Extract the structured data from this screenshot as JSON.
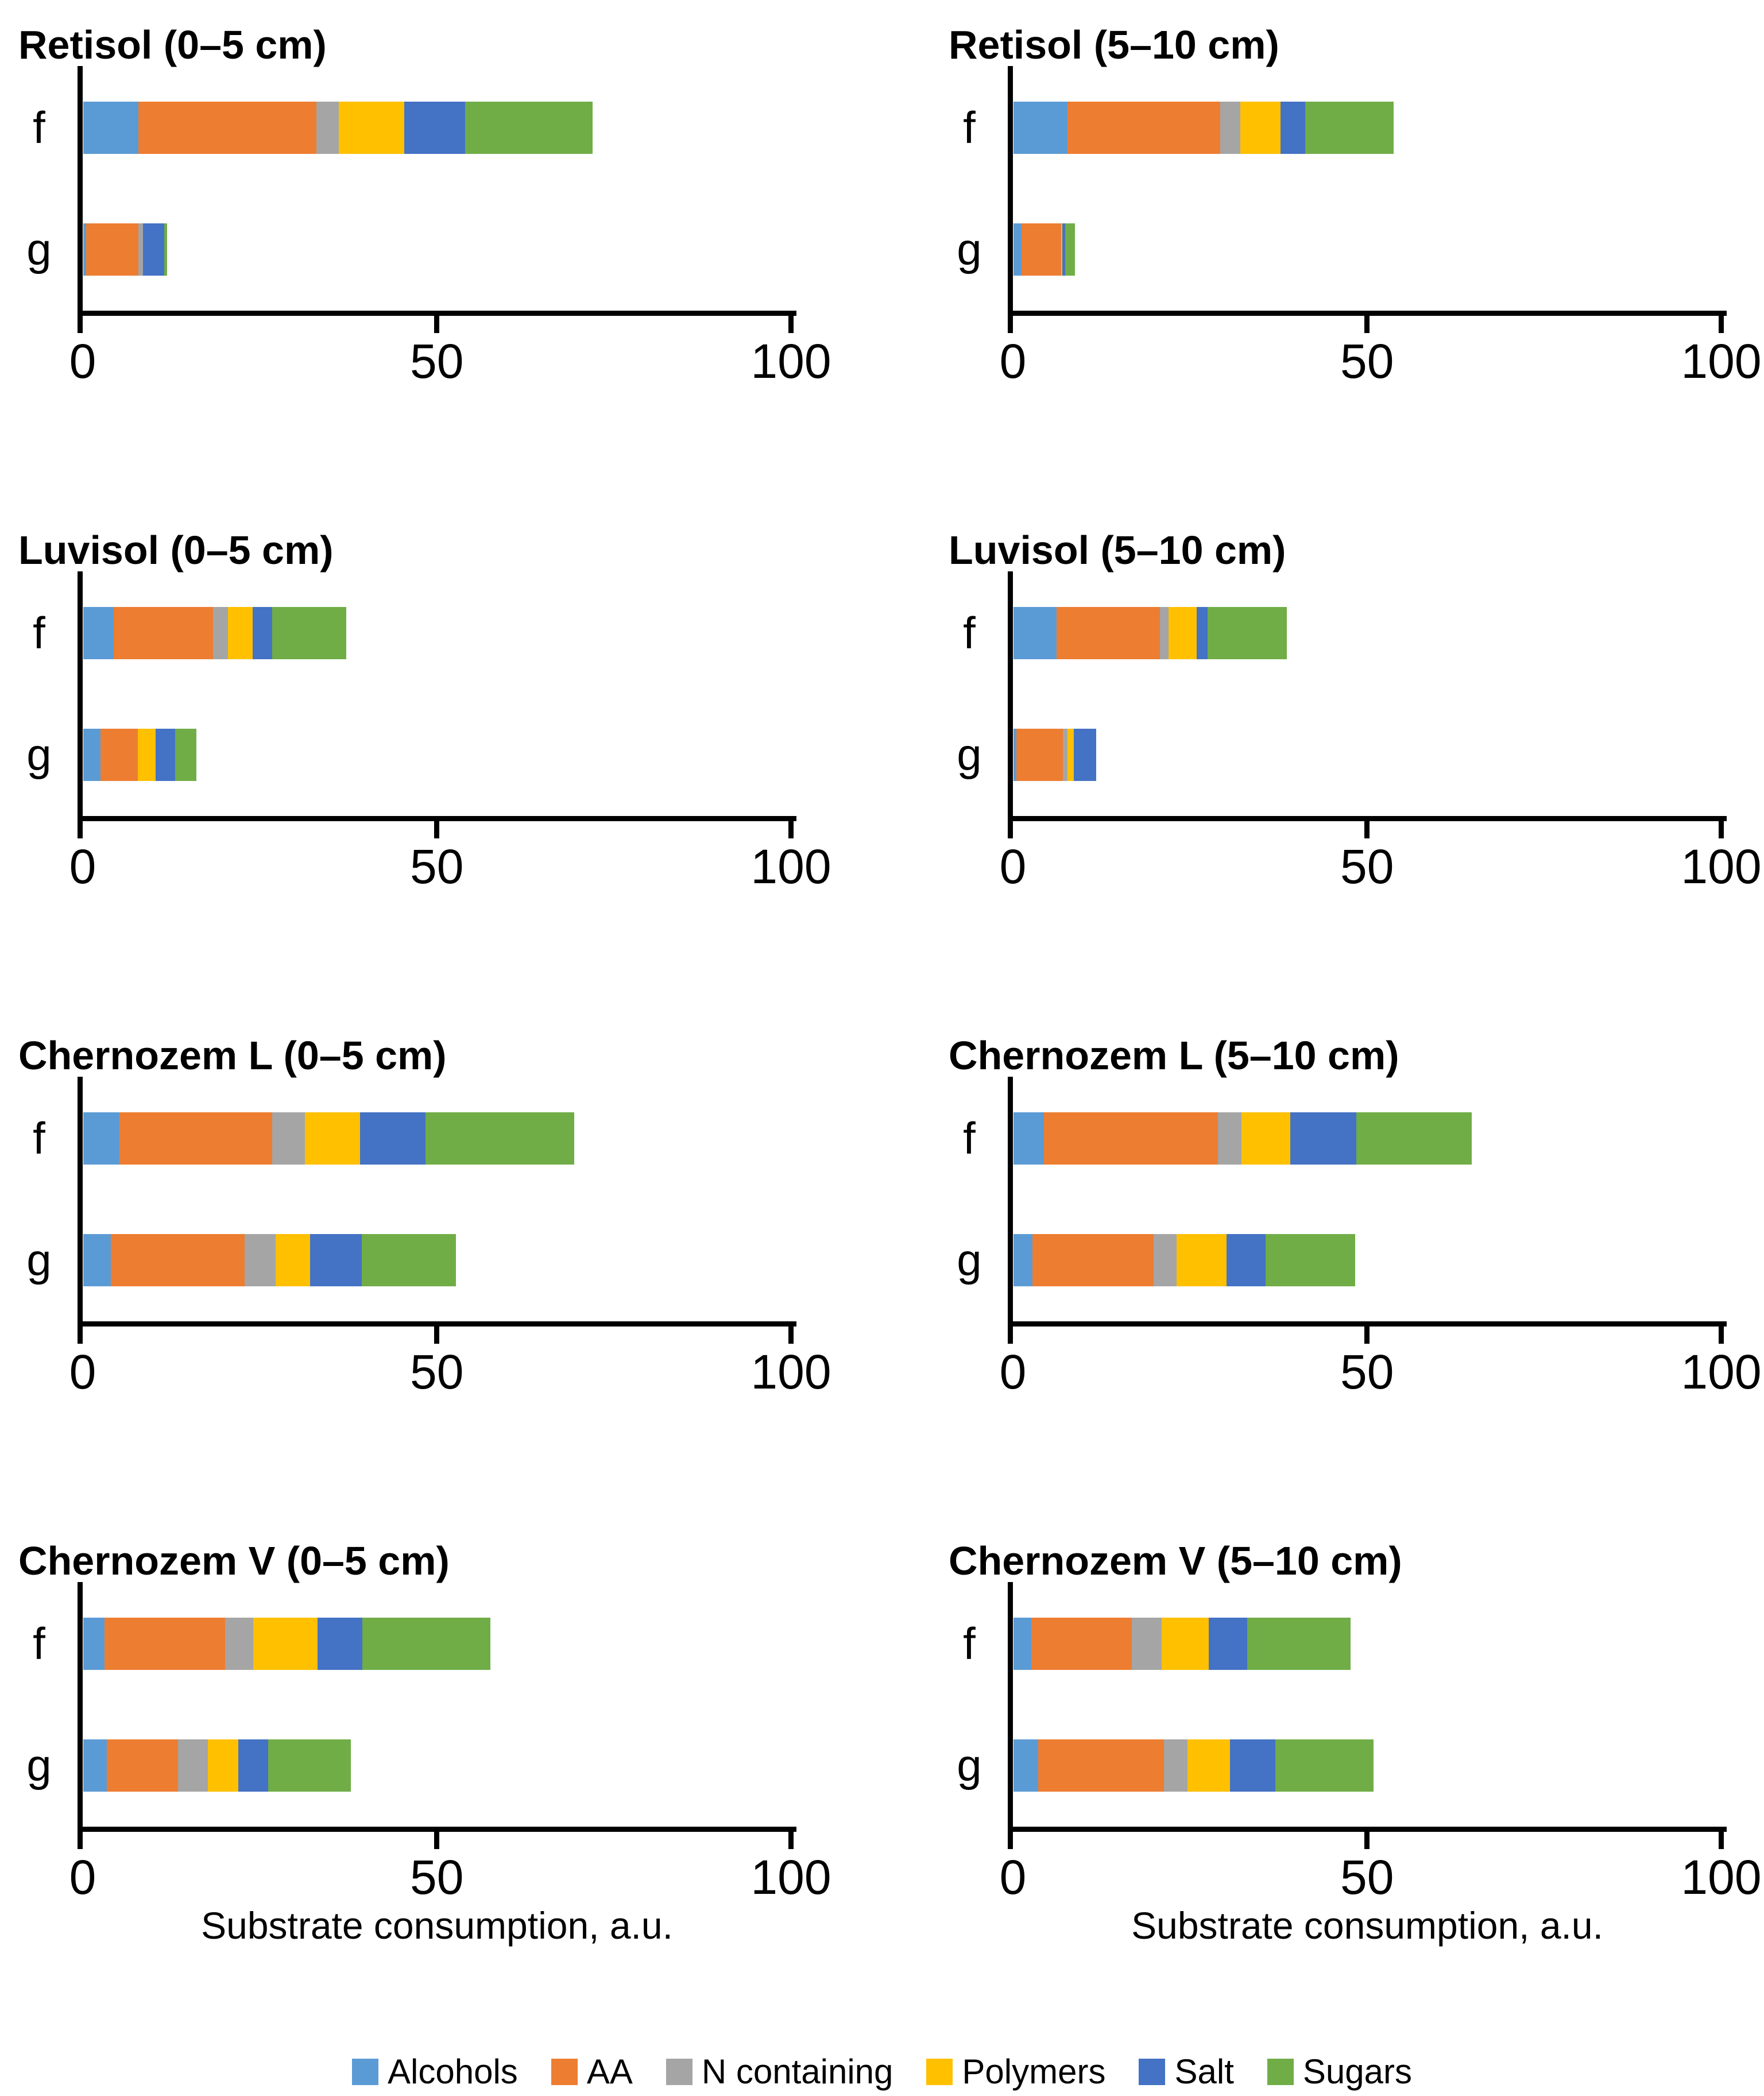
{
  "figure_title": "",
  "axis": {
    "label": "Substrate consumption, a.u.",
    "ticks": [
      "0",
      "50",
      "100"
    ],
    "tick_values": [
      0,
      50,
      100
    ],
    "max": 100
  },
  "categories": [
    "f",
    "g"
  ],
  "legend": [
    {
      "name": "Alcohols",
      "color": "#5B9BD5"
    },
    {
      "name": "AA",
      "color": "#ED7D31"
    },
    {
      "name": "N containing",
      "color": "#A5A5A5"
    },
    {
      "name": "Polymers",
      "color": "#FFC000"
    },
    {
      "name": "Salt",
      "color": "#4472C4"
    },
    {
      "name": "Sugars",
      "color": "#70AD47"
    }
  ],
  "chart_data": {
    "type": "bar",
    "orientation": "horizontal",
    "stacked": true,
    "grid": false,
    "legend_position": "bottom",
    "xlabel": "Substrate consumption, a.u.",
    "xlim": [
      0,
      100
    ],
    "series_names": [
      "Alcohols",
      "AA",
      "N containing",
      "Polymers",
      "Salt",
      "Sugars"
    ],
    "row_labels": [
      "f",
      "g"
    ],
    "panels": [
      {
        "title": "Retisol (0–5 cm)",
        "f": [
          7.8,
          25.1,
          3.2,
          9.2,
          8.6,
          18.0
        ],
        "g": [
          0.4,
          7.4,
          0.6,
          0.0,
          3.0,
          0.4
        ]
      },
      {
        "title": "Retisol (5–10 cm)",
        "f": [
          7.6,
          21.6,
          2.8,
          5.7,
          3.5,
          12.5
        ],
        "g": [
          1.1,
          5.6,
          0.0,
          0.2,
          0.4,
          1.4
        ]
      },
      {
        "title": "Luvisol (0–5 cm)",
        "f": [
          4.3,
          14.0,
          2.1,
          3.5,
          2.8,
          10.4
        ],
        "g": [
          2.4,
          5.3,
          0.0,
          2.5,
          2.8,
          3.0
        ]
      },
      {
        "title": "Luvisol (5–10 cm)",
        "f": [
          6.1,
          14.6,
          1.2,
          4.0,
          1.5,
          11.2
        ],
        "g": [
          0.4,
          6.6,
          0.6,
          0.9,
          3.2,
          0.0
        ]
      },
      {
        "title": "Chernozem L (0–5 cm)",
        "f": [
          5.1,
          21.6,
          4.6,
          7.8,
          9.2,
          21.0
        ],
        "g": [
          3.9,
          18.9,
          4.4,
          4.8,
          7.3,
          13.3
        ]
      },
      {
        "title": "Chernozem L (5–10 cm)",
        "f": [
          4.3,
          24.6,
          3.3,
          6.9,
          9.3,
          16.3
        ],
        "g": [
          2.7,
          17.1,
          3.2,
          7.1,
          5.5,
          12.6
        ]
      },
      {
        "title": "Chernozem V (0–5 cm)",
        "f": [
          3.0,
          17.0,
          4.0,
          9.1,
          6.3,
          18.1
        ],
        "g": [
          3.3,
          10.1,
          4.2,
          4.3,
          4.2,
          11.7
        ]
      },
      {
        "title": "Chernozem V (5–10 cm)",
        "f": [
          2.5,
          14.2,
          4.2,
          6.7,
          5.4,
          14.6
        ],
        "g": [
          3.5,
          17.7,
          3.4,
          6.0,
          6.4,
          13.8
        ]
      }
    ]
  }
}
